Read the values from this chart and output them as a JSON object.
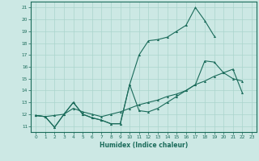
{
  "xlabel": "Humidex (Indice chaleur)",
  "background_color": "#cce8e4",
  "grid_color": "#aad4cc",
  "line_color": "#1a6b5a",
  "xlim": [
    -0.5,
    23.5
  ],
  "ylim": [
    10.5,
    21.5
  ],
  "xticks": [
    0,
    1,
    2,
    3,
    4,
    5,
    6,
    7,
    8,
    9,
    10,
    11,
    12,
    13,
    14,
    15,
    16,
    17,
    18,
    19,
    20,
    21,
    22,
    23
  ],
  "yticks": [
    11,
    12,
    13,
    14,
    15,
    16,
    17,
    18,
    19,
    20,
    21
  ],
  "line1_y": [
    11.9,
    11.8,
    10.9,
    12.0,
    13.0,
    12.0,
    11.7,
    11.5,
    11.2,
    11.2,
    14.5,
    17.0,
    18.2,
    18.3,
    18.5,
    19.0,
    19.5,
    21.0,
    19.9,
    18.6,
    null,
    null,
    null,
    null
  ],
  "line2_y": [
    11.9,
    11.8,
    10.9,
    12.0,
    13.0,
    12.0,
    11.7,
    11.5,
    11.2,
    11.2,
    14.5,
    12.3,
    12.2,
    12.5,
    13.0,
    13.5,
    14.0,
    14.5,
    16.5,
    16.4,
    15.5,
    15.0,
    14.8,
    null
  ],
  "line3_y": [
    11.9,
    11.8,
    11.9,
    12.0,
    12.5,
    12.2,
    12.0,
    11.8,
    12.0,
    12.2,
    12.5,
    12.8,
    13.0,
    13.2,
    13.5,
    13.7,
    14.0,
    14.5,
    14.8,
    15.2,
    15.5,
    15.8,
    13.8,
    null
  ]
}
